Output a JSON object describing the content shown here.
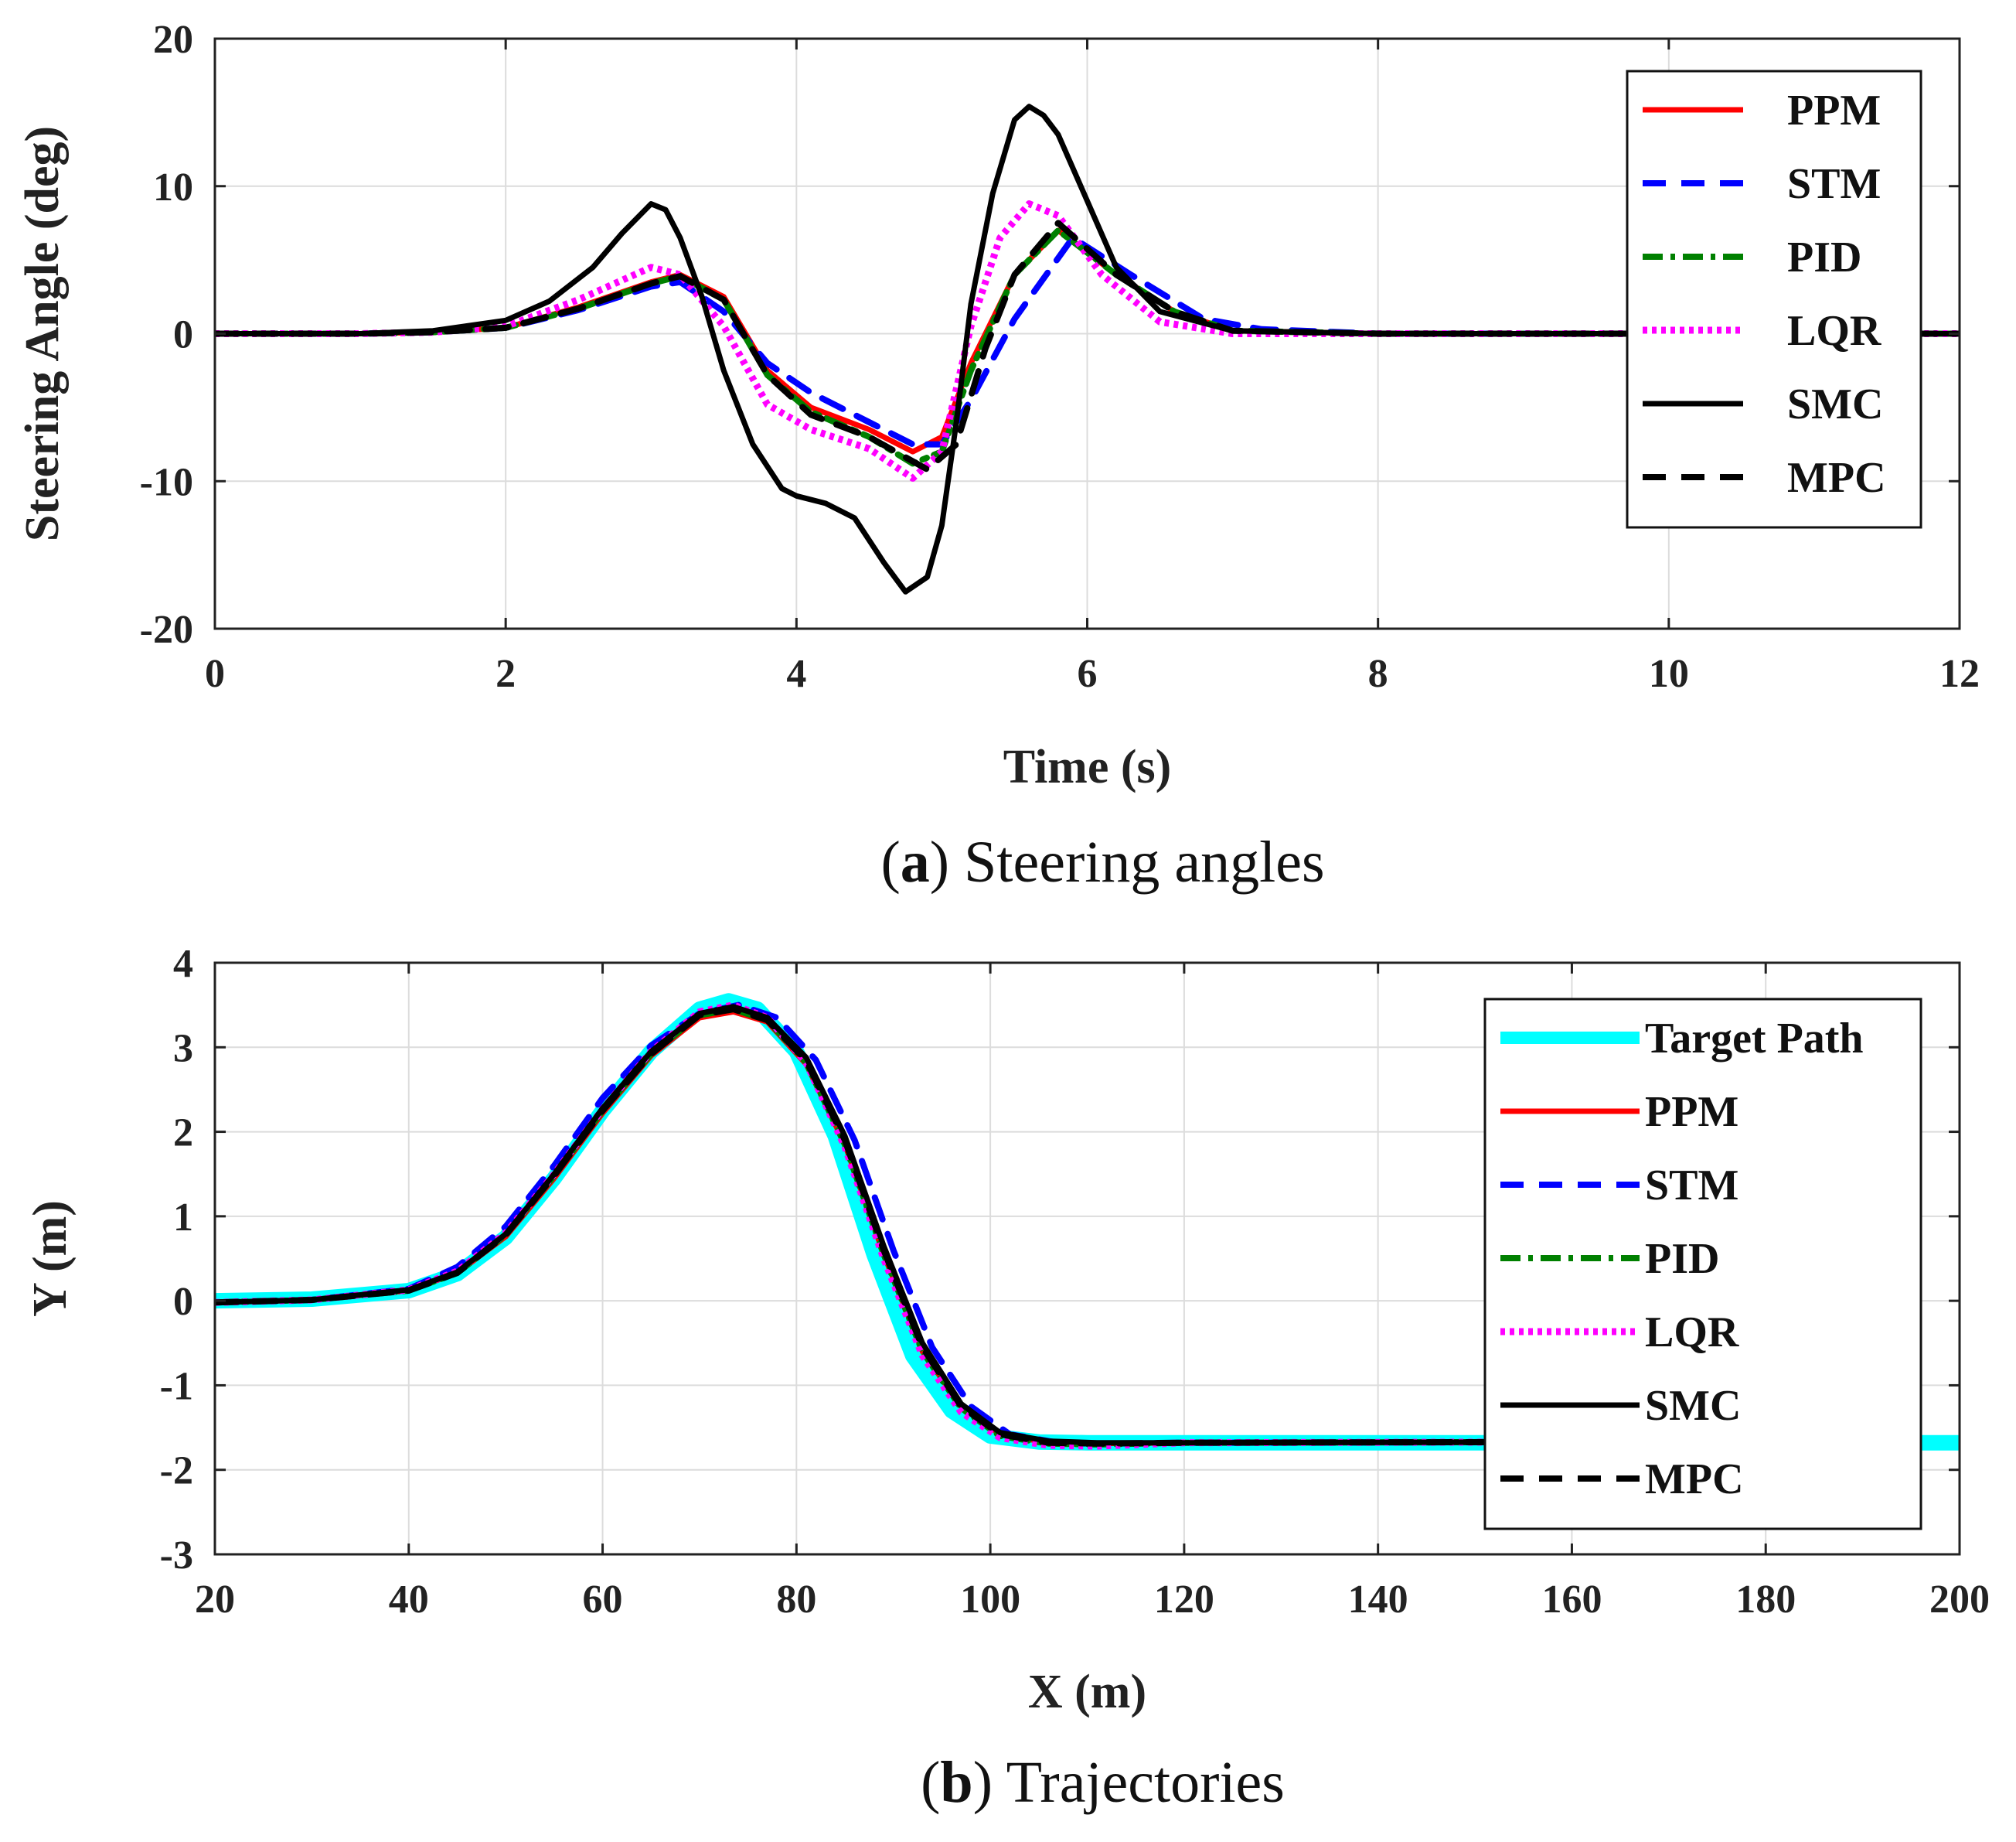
{
  "chart_data": [
    {
      "type": "line",
      "xlabel": "Time (s)",
      "ylabel": "Steering Angle (deg)",
      "xlim": [
        0,
        12
      ],
      "ylim": [
        -20,
        20
      ],
      "xticks": [
        0,
        2,
        4,
        6,
        8,
        10,
        12
      ],
      "yticks": [
        -20,
        -10,
        0,
        10,
        20
      ],
      "grid": true,
      "legend_position": "top-right",
      "caption": {
        "letter": "a",
        "text": "Steering angles"
      },
      "series": [
        {
          "name": "PPM",
          "color": "#ff0000",
          "style": "solid",
          "x": [
            0,
            1,
            1.5,
            2,
            2.5,
            3,
            3.2,
            3.5,
            3.8,
            4.1,
            4.5,
            4.8,
            5.0,
            5.2,
            5.5,
            5.8,
            6.2,
            6.6,
            7,
            8,
            12
          ],
          "y": [
            0,
            0,
            0.1,
            0.4,
            1.8,
            3.5,
            4.0,
            2.5,
            -2.5,
            -5.0,
            -6.5,
            -8.0,
            -7.0,
            -2.0,
            4.0,
            7.0,
            4.0,
            1.5,
            0.2,
            0,
            0
          ]
        },
        {
          "name": "STM",
          "color": "#0000ff",
          "style": "dashed",
          "x": [
            0,
            1,
            1.5,
            2,
            2.5,
            3,
            3.2,
            3.5,
            3.8,
            4.1,
            4.5,
            4.8,
            5.0,
            5.2,
            5.5,
            5.9,
            6.3,
            6.8,
            7.2,
            8,
            12
          ],
          "y": [
            0,
            0,
            0.1,
            0.4,
            1.6,
            3.2,
            3.5,
            1.5,
            -2.0,
            -4.0,
            -6.0,
            -7.5,
            -7.5,
            -4.5,
            1.0,
            6.5,
            4.0,
            1.0,
            0.3,
            0,
            0
          ]
        },
        {
          "name": "PID",
          "color": "#008000",
          "style": "dashdot",
          "x": [
            0,
            1,
            1.5,
            2,
            2.5,
            3,
            3.2,
            3.5,
            3.8,
            4.1,
            4.5,
            4.8,
            5.0,
            5.2,
            5.5,
            5.8,
            6.2,
            6.6,
            7,
            8,
            12
          ],
          "y": [
            0,
            0,
            0.1,
            0.4,
            1.7,
            3.4,
            3.9,
            2.3,
            -2.8,
            -5.3,
            -7.0,
            -8.8,
            -8.0,
            -2.5,
            4.0,
            7.0,
            4.0,
            1.5,
            0.2,
            0,
            0
          ]
        },
        {
          "name": "LQR",
          "color": "#ff00ff",
          "style": "dotted",
          "x": [
            0,
            1,
            1.5,
            2,
            2.5,
            3,
            3.2,
            3.5,
            3.8,
            4.1,
            4.5,
            4.8,
            5.0,
            5.2,
            5.4,
            5.6,
            5.8,
            6.1,
            6.5,
            7,
            8,
            12
          ],
          "y": [
            0,
            0,
            0.1,
            0.5,
            2.3,
            4.5,
            4.0,
            0.5,
            -4.8,
            -6.5,
            -7.8,
            -9.8,
            -8.0,
            0.5,
            6.5,
            8.8,
            8.0,
            4.0,
            0.8,
            0,
            0,
            0
          ]
        },
        {
          "name": "SMC",
          "color": "#000000",
          "style": "solid",
          "x": [
            0,
            1,
            1.5,
            2,
            2.3,
            2.6,
            2.8,
            3.0,
            3.1,
            3.2,
            3.35,
            3.5,
            3.7,
            3.9,
            4.0,
            4.2,
            4.4,
            4.6,
            4.75,
            4.9,
            5.0,
            5.1,
            5.2,
            5.35,
            5.5,
            5.6,
            5.7,
            5.8,
            6.0,
            6.2,
            6.5,
            7,
            8,
            12
          ],
          "y": [
            0,
            0,
            0.2,
            0.9,
            2.2,
            4.5,
            6.8,
            8.8,
            8.4,
            6.5,
            2.5,
            -2.5,
            -7.5,
            -10.5,
            -11.0,
            -11.5,
            -12.5,
            -15.5,
            -17.5,
            -16.5,
            -13.0,
            -6.0,
            2.0,
            9.5,
            14.5,
            15.4,
            14.8,
            13.5,
            9.0,
            4.5,
            1.5,
            0.2,
            0,
            0
          ]
        },
        {
          "name": "MPC",
          "color": "#000000",
          "style": "dashed",
          "x": [
            0,
            1,
            1.5,
            2,
            2.5,
            3,
            3.2,
            3.5,
            3.8,
            4.1,
            4.5,
            4.9,
            5.1,
            5.3,
            5.5,
            5.8,
            6.2,
            6.6,
            7,
            8,
            12
          ],
          "y": [
            0,
            0,
            0.1,
            0.4,
            1.7,
            3.4,
            3.9,
            2.3,
            -2.8,
            -5.5,
            -7.0,
            -9.2,
            -7.5,
            -1.0,
            4.0,
            7.5,
            4.0,
            1.5,
            0.2,
            0,
            0
          ]
        }
      ]
    },
    {
      "type": "line",
      "xlabel": "X (m)",
      "ylabel": "Y (m)",
      "xlim": [
        20,
        200
      ],
      "ylim": [
        -3,
        4
      ],
      "xticks": [
        20,
        40,
        60,
        80,
        100,
        120,
        140,
        160,
        180,
        200
      ],
      "yticks": [
        -3,
        -2,
        -1,
        0,
        1,
        2,
        3,
        4
      ],
      "grid": true,
      "legend_position": "right",
      "caption": {
        "letter": "b",
        "text": "Trajectories"
      },
      "series": [
        {
          "name": "Target Path",
          "color": "#00ffff",
          "style": "solid-thick",
          "x": [
            20,
            30,
            40,
            45,
            50,
            55,
            60,
            65,
            70,
            73,
            76,
            80,
            84,
            88,
            92,
            96,
            100,
            105,
            110,
            120,
            200
          ],
          "y": [
            0,
            0.02,
            0.12,
            0.32,
            0.75,
            1.45,
            2.25,
            2.95,
            3.45,
            3.55,
            3.45,
            2.95,
            1.95,
            0.55,
            -0.65,
            -1.3,
            -1.6,
            -1.67,
            -1.68,
            -1.68,
            -1.68
          ]
        },
        {
          "name": "PPM",
          "color": "#ff0000",
          "style": "solid",
          "x": [
            20,
            30,
            40,
            45,
            50,
            55,
            60,
            65,
            70,
            73.5,
            77,
            81,
            85,
            89,
            93,
            97,
            101,
            106,
            111,
            120,
            160
          ],
          "y": [
            -0.02,
            0.01,
            0.12,
            0.33,
            0.76,
            1.45,
            2.22,
            2.9,
            3.35,
            3.42,
            3.3,
            2.8,
            1.85,
            0.55,
            -0.6,
            -1.25,
            -1.58,
            -1.68,
            -1.69,
            -1.68,
            -1.67
          ]
        },
        {
          "name": "STM",
          "color": "#0000ff",
          "style": "dashed",
          "x": [
            20,
            30,
            40,
            45,
            50,
            55,
            60,
            65,
            70,
            74,
            78,
            82,
            86,
            90,
            94,
            98,
            102,
            107,
            112,
            120,
            160
          ],
          "y": [
            -0.02,
            0.01,
            0.14,
            0.4,
            0.88,
            1.6,
            2.4,
            3.02,
            3.4,
            3.5,
            3.35,
            2.85,
            1.9,
            0.6,
            -0.55,
            -1.25,
            -1.58,
            -1.68,
            -1.69,
            -1.68,
            -1.67
          ]
        },
        {
          "name": "PID",
          "color": "#008000",
          "style": "dashdot",
          "x": [
            20,
            30,
            40,
            45,
            50,
            55,
            60,
            65,
            70,
            73.5,
            77,
            81,
            85,
            89,
            93,
            97,
            101,
            106,
            111,
            120,
            160
          ],
          "y": [
            -0.02,
            0.01,
            0.12,
            0.33,
            0.78,
            1.48,
            2.25,
            2.92,
            3.38,
            3.45,
            3.32,
            2.82,
            1.85,
            0.55,
            -0.6,
            -1.27,
            -1.6,
            -1.69,
            -1.7,
            -1.68,
            -1.67
          ]
        },
        {
          "name": "LQR",
          "color": "#ff00ff",
          "style": "dotted",
          "x": [
            20,
            30,
            40,
            45,
            50,
            55,
            60,
            65,
            70,
            73.5,
            77,
            81,
            85,
            89,
            93,
            97,
            101,
            106,
            111,
            120,
            160
          ],
          "y": [
            -0.02,
            0.01,
            0.13,
            0.35,
            0.8,
            1.5,
            2.27,
            2.95,
            3.42,
            3.5,
            3.35,
            2.82,
            1.82,
            0.5,
            -0.65,
            -1.32,
            -1.62,
            -1.71,
            -1.72,
            -1.68,
            -1.67
          ]
        },
        {
          "name": "SMC",
          "color": "#000000",
          "style": "solid",
          "x": [
            20,
            30,
            40,
            45,
            50,
            55,
            60,
            65,
            70,
            73.5,
            77,
            81,
            85,
            89,
            93,
            97,
            101,
            106,
            111,
            120,
            160
          ],
          "y": [
            -0.02,
            0.01,
            0.13,
            0.34,
            0.79,
            1.5,
            2.28,
            2.95,
            3.4,
            3.48,
            3.35,
            2.88,
            1.95,
            0.65,
            -0.5,
            -1.22,
            -1.56,
            -1.66,
            -1.68,
            -1.68,
            -1.67
          ]
        },
        {
          "name": "MPC",
          "color": "#000000",
          "style": "dashed",
          "x": [
            20,
            30,
            40,
            45,
            50,
            55,
            60,
            65,
            70,
            73.5,
            77,
            81,
            85,
            89,
            93,
            97,
            101,
            106,
            111,
            120,
            160
          ],
          "y": [
            -0.02,
            0.01,
            0.12,
            0.33,
            0.78,
            1.48,
            2.25,
            2.92,
            3.38,
            3.45,
            3.32,
            2.84,
            1.9,
            0.6,
            -0.55,
            -1.25,
            -1.58,
            -1.68,
            -1.69,
            -1.68,
            -1.67
          ]
        }
      ]
    }
  ]
}
